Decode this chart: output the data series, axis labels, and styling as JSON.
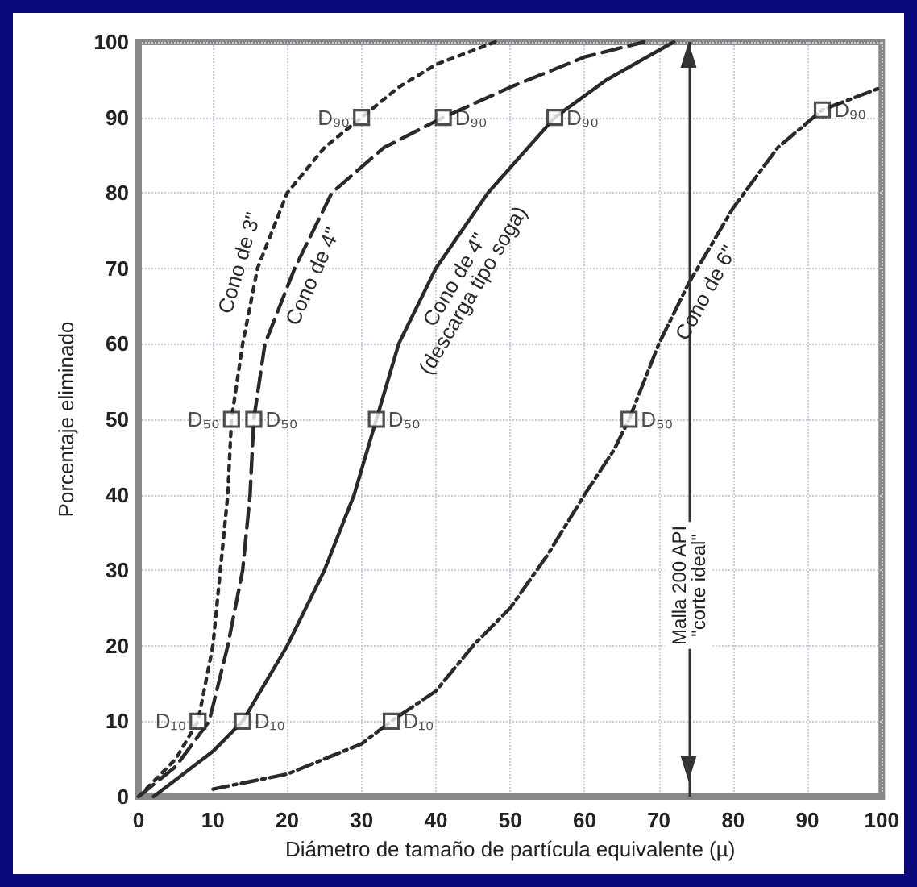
{
  "chart_data": {
    "type": "line",
    "xlabel": "Diámetro de tamaño de partícula equivalente (µ)",
    "ylabel": "Porcentaje eliminado",
    "xlim": [
      0,
      100
    ],
    "ylim": [
      0,
      100
    ],
    "xticks": [
      0,
      10,
      20,
      30,
      40,
      50,
      60,
      70,
      80,
      90,
      100
    ],
    "yticks": [
      0,
      10,
      20,
      30,
      40,
      50,
      60,
      70,
      80,
      90,
      100
    ],
    "grid": true,
    "legend": false,
    "marker": "none",
    "series": [
      {
        "name": "Cono de 3\"",
        "color": "#2a2a2a",
        "line_style": "dotted",
        "x": [
          0,
          5,
          8,
          10,
          11,
          12,
          12.5,
          14,
          16,
          20,
          25,
          30,
          35,
          40,
          48
        ],
        "values": [
          0,
          5,
          10,
          20,
          30,
          40,
          50,
          60,
          70,
          80,
          86,
          90,
          94,
          97,
          100
        ]
      },
      {
        "name": "Cono de 4\"",
        "color": "#2a2a2a",
        "line_style": "dashed",
        "x": [
          0,
          5,
          9.5,
          12,
          14,
          15,
          15.5,
          17,
          21,
          26,
          33,
          41,
          50,
          60,
          68
        ],
        "values": [
          0,
          4,
          10,
          20,
          30,
          40,
          50,
          60,
          70,
          80,
          86,
          90,
          94,
          98,
          100
        ]
      },
      {
        "name": "Cono de 4\" (descarga tipo soga)",
        "color": "#2a2a2a",
        "line_style": "solid",
        "x": [
          2,
          6,
          10,
          14,
          20,
          25,
          29,
          32,
          35,
          40,
          47,
          56,
          63,
          72
        ],
        "values": [
          0,
          3,
          6,
          10,
          20,
          30,
          40,
          50,
          60,
          70,
          80,
          90,
          95,
          100
        ]
      },
      {
        "name": "Cono de 6\"",
        "color": "#2a2a2a",
        "line_style": "dashdot",
        "x": [
          10,
          20,
          30,
          34,
          40,
          45,
          50,
          55,
          60,
          64,
          66,
          70,
          74,
          80,
          86,
          92,
          100
        ],
        "values": [
          1,
          3,
          7,
          10,
          14,
          20,
          25,
          32,
          40,
          46,
          50,
          60,
          68,
          78,
          86,
          91,
          94
        ]
      }
    ],
    "ref_lines": [
      {
        "axis": "x",
        "value": 74,
        "label": "Malla 200 API\n\"corte ideal\""
      }
    ],
    "annotations": [
      {
        "text": "D₁₀",
        "x": 8,
        "y": 10
      },
      {
        "text": "D₁₀",
        "x": 14,
        "y": 10
      },
      {
        "text": "D₁₀",
        "x": 34,
        "y": 10
      },
      {
        "text": "D₅₀",
        "x": 12.5,
        "y": 50
      },
      {
        "text": "D₅₀",
        "x": 15.5,
        "y": 50
      },
      {
        "text": "D₅₀",
        "x": 32,
        "y": 50
      },
      {
        "text": "D₅₀",
        "x": 66,
        "y": 50
      },
      {
        "text": "D₉₀",
        "x": 30,
        "y": 90
      },
      {
        "text": "D₉₀",
        "x": 41,
        "y": 90
      },
      {
        "text": "D₉₀",
        "x": 56,
        "y": 90
      },
      {
        "text": "D₉₀",
        "x": 92,
        "y": 91
      }
    ]
  }
}
